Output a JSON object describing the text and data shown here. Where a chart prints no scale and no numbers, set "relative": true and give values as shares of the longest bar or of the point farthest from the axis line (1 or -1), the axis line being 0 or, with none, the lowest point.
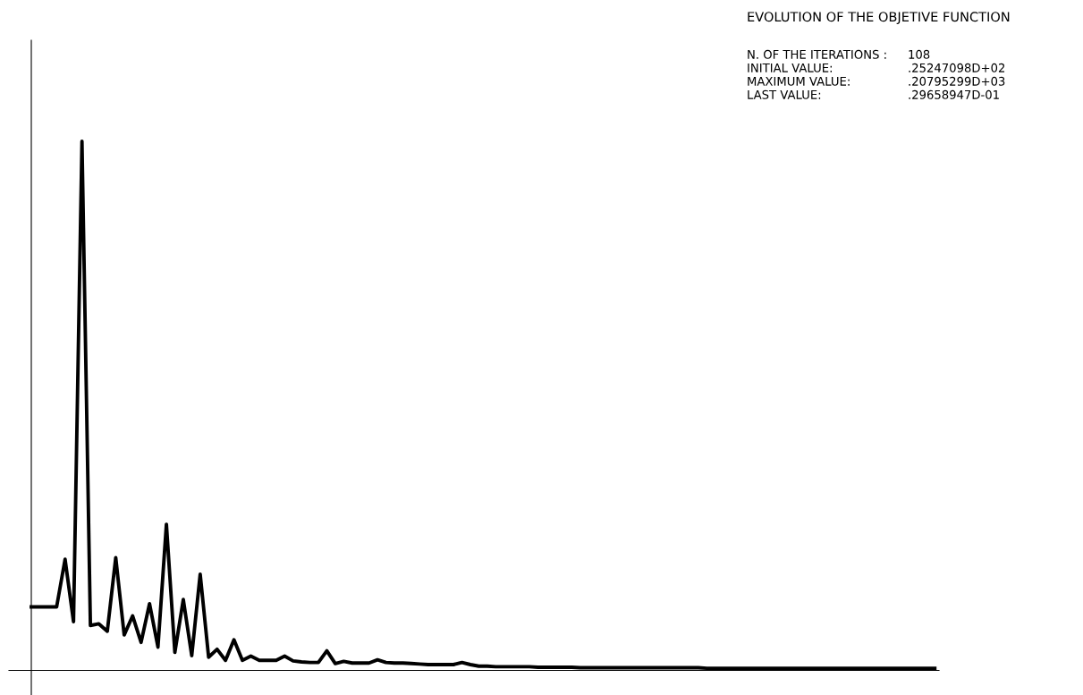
{
  "chart_data": {
    "type": "line",
    "relative": true,
    "title": "EVOLUTION OF THE OBJETIVE FUNCTION",
    "annotations": [
      "N. OF THE ITERATIONS :",
      "108",
      "INITIAL VALUE:",
      ".25247098D+02",
      "MAXIMUM VALUE:",
      ".20795299D+03",
      "LAST VALUE:",
      ".29658947D-01"
    ],
    "categories": [
      null,
      null,
      null,
      null,
      null,
      null,
      null,
      null,
      null,
      null,
      null,
      null,
      null,
      null,
      null,
      null,
      null,
      null,
      null,
      null,
      null,
      null,
      null,
      null,
      null,
      null,
      null,
      null,
      null,
      null,
      null,
      null,
      null,
      null,
      null,
      null,
      null,
      null,
      null,
      null,
      null,
      null,
      null,
      null,
      null,
      null,
      null,
      null,
      null,
      null,
      null,
      null,
      null,
      null,
      null,
      null,
      null,
      null,
      null,
      null,
      null,
      null,
      null,
      null,
      null,
      null,
      null,
      null,
      null,
      null,
      null,
      null,
      null,
      null,
      null,
      null,
      null,
      null,
      null,
      null,
      null,
      null,
      null,
      null,
      null,
      null,
      null,
      null,
      null,
      null,
      null,
      null,
      null,
      null,
      null,
      null,
      null,
      null,
      null,
      null,
      null,
      null,
      null,
      null,
      null,
      null,
      null,
      null
    ],
    "series": [
      {
        "color": "#000000",
        "values": [
          0.12,
          0.12,
          0.12,
          0.12,
          0.21,
          0.092,
          1.0,
          0.085,
          0.088,
          0.074,
          0.213,
          0.067,
          0.103,
          0.053,
          0.126,
          0.044,
          0.276,
          0.034,
          0.134,
          0.028,
          0.182,
          0.025,
          0.04,
          0.019,
          0.058,
          0.019,
          0.027,
          0.019,
          0.019,
          0.019,
          0.027,
          0.018,
          0.016,
          0.015,
          0.015,
          0.037,
          0.013,
          0.017,
          0.014,
          0.014,
          0.014,
          0.02,
          0.015,
          0.014,
          0.014,
          0.013,
          0.012,
          0.011,
          0.011,
          0.011,
          0.011,
          0.015,
          0.011,
          0.008,
          0.008,
          0.007,
          0.007,
          0.007,
          0.007,
          0.007,
          0.006,
          0.006,
          0.006,
          0.006,
          0.006,
          0.005,
          0.005,
          0.005,
          0.005,
          0.005,
          0.005,
          0.005,
          0.005,
          0.005,
          0.005,
          0.005,
          0.005,
          0.005,
          0.005,
          0.005,
          0.004,
          0.004,
          0.004,
          0.004,
          0.004,
          0.004,
          0.004,
          0.004,
          0.004,
          0.004,
          0.004,
          0.004,
          0.004,
          0.004,
          0.004,
          0.004,
          0.004,
          0.004,
          0.004,
          0.004,
          0.004,
          0.004,
          0.004,
          0.004,
          0.004,
          0.004,
          0.004,
          0.004
        ]
      }
    ],
    "marker": "none",
    "line_style": "solid"
  }
}
